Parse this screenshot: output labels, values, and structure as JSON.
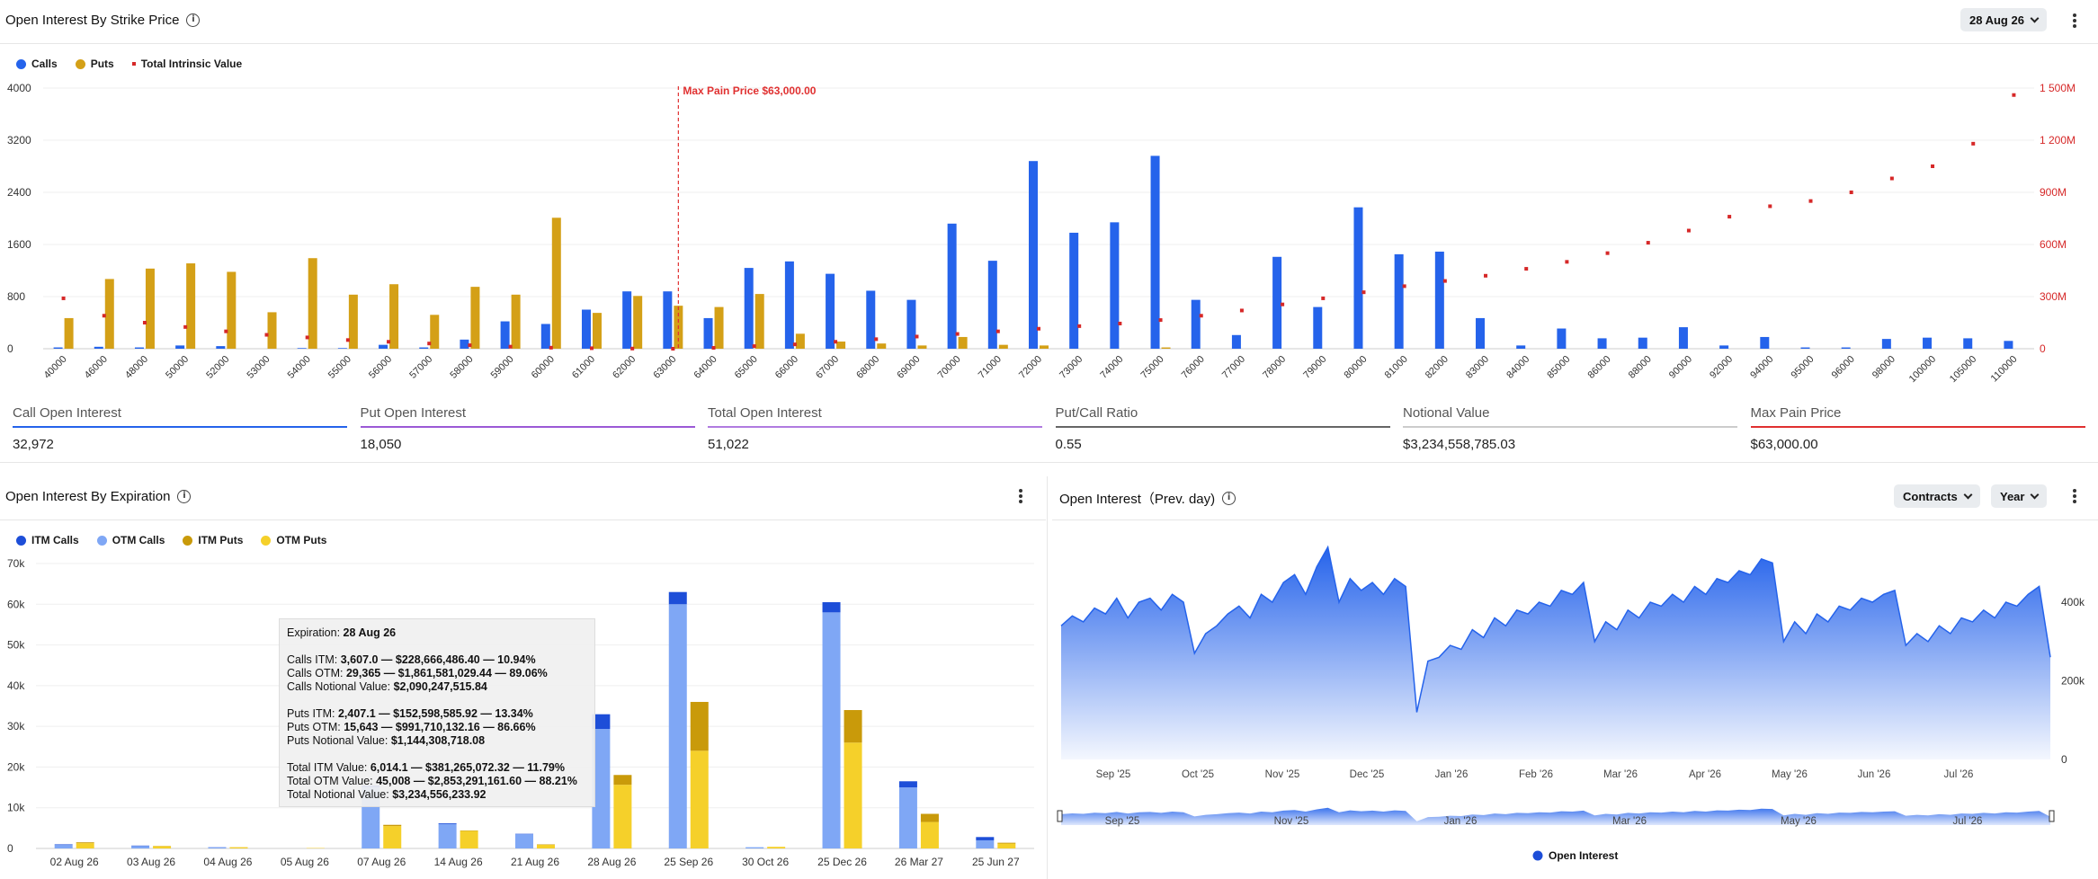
{
  "strike_panel": {
    "title": "Open Interest By Strike Price",
    "expiry_select": "28 Aug 26",
    "legend": [
      {
        "label": "Calls",
        "color": "#2563eb"
      },
      {
        "label": "Puts",
        "color": "#d4a017"
      },
      {
        "label": "Total Intrinsic Value",
        "color": "#d62828"
      }
    ],
    "max_pain_label": "Max Pain Price $63,000.00"
  },
  "stats": [
    {
      "label": "Call Open Interest",
      "value": "32,972",
      "color": "#2563eb"
    },
    {
      "label": "Put Open Interest",
      "value": "18,050",
      "color": "#9b59d6"
    },
    {
      "label": "Total Open Interest",
      "value": "51,022",
      "color": "#b07be0"
    },
    {
      "label": "Put/Call Ratio",
      "value": "0.55",
      "color": "#666666"
    },
    {
      "label": "Notional Value",
      "value": "$3,234,558,785.03",
      "color": "#cccccc"
    },
    {
      "label": "Max Pain Price",
      "value": "$63,000.00",
      "color": "#e03030"
    }
  ],
  "expiry_panel": {
    "title": "Open Interest By Expiration",
    "legend": [
      {
        "label": "ITM Calls",
        "color": "#1d4ed8"
      },
      {
        "label": "OTM Calls",
        "color": "#7fa7f5"
      },
      {
        "label": "ITM Puts",
        "color": "#c99a0a"
      },
      {
        "label": "OTM Puts",
        "color": "#f5d02a"
      }
    ],
    "tooltip": {
      "expiration_label": "Expiration:",
      "expiration_value": "28 Aug 26",
      "lines": [
        [
          "Calls ITM:",
          "3,607.0 — $228,666,486.40 — 10.94%"
        ],
        [
          "Calls OTM:",
          "29,365 — $1,861,581,029.44 — 89.06%"
        ],
        [
          "Calls Notional Value:",
          "$2,090,247,515.84"
        ],
        [
          "Puts ITM:",
          "2,407.1 — $152,598,585.92 — 13.34%"
        ],
        [
          "Puts OTM:",
          "15,643 — $991,710,132.16 — 86.66%"
        ],
        [
          "Puts Notional Value:",
          "$1,144,308,718.08"
        ],
        [
          "Total ITM Value:",
          "6,014.1 — $381,265,072.32 — 11.79%"
        ],
        [
          "Total OTM Value:",
          "45,008 — $2,853,291,161.60 — 88.21%"
        ],
        [
          "Total Notional Value:",
          "$3,234,556,233.92"
        ]
      ]
    }
  },
  "prevday_panel": {
    "title": "Open Interest（Prev. day)",
    "unit_select": "Contracts",
    "range_select": "Year",
    "legend_label": "Open Interest",
    "color": "#2563eb"
  },
  "chart_data": [
    {
      "type": "bar",
      "title": "Open Interest By Strike Price",
      "categories": [
        "40000",
        "46000",
        "48000",
        "50000",
        "52000",
        "53000",
        "54000",
        "55000",
        "56000",
        "57000",
        "58000",
        "59000",
        "60000",
        "61000",
        "62000",
        "63000",
        "64000",
        "65000",
        "66000",
        "67000",
        "68000",
        "69000",
        "70000",
        "71000",
        "72000",
        "73000",
        "74000",
        "75000",
        "76000",
        "77000",
        "78000",
        "79000",
        "80000",
        "81000",
        "82000",
        "83000",
        "84000",
        "85000",
        "86000",
        "88000",
        "90000",
        "92000",
        "94000",
        "95000",
        "96000",
        "98000",
        "100000",
        "105000",
        "110000"
      ],
      "series": [
        {
          "name": "Calls",
          "values": [
            20,
            30,
            20,
            50,
            40,
            0,
            10,
            10,
            60,
            20,
            140,
            420,
            380,
            600,
            880,
            880,
            470,
            1240,
            1340,
            1150,
            890,
            750,
            1920,
            1350,
            2880,
            1780,
            1940,
            2960,
            750,
            210,
            1410,
            640,
            2170,
            1450,
            1490,
            470,
            50,
            310,
            160,
            170,
            330,
            50,
            180,
            20,
            20,
            150,
            170,
            160,
            120
          ]
        },
        {
          "name": "Puts",
          "values": [
            470,
            1070,
            1230,
            1310,
            1180,
            560,
            1390,
            830,
            990,
            520,
            950,
            830,
            2010,
            550,
            810,
            660,
            640,
            840,
            230,
            110,
            80,
            50,
            180,
            60,
            50,
            0,
            0,
            20,
            0,
            0,
            0,
            0,
            0,
            0,
            0,
            0,
            0,
            0,
            0,
            0,
            0,
            0,
            0,
            0,
            0,
            0,
            0,
            0,
            0
          ]
        },
        {
          "name": "Total Intrinsic Value",
          "axis": "right",
          "unit": "M",
          "values": [
            290,
            190,
            150,
            125,
            100,
            80,
            65,
            50,
            40,
            30,
            20,
            12,
            6,
            3,
            1,
            0,
            5,
            15,
            25,
            40,
            55,
            70,
            85,
            100,
            115,
            130,
            145,
            165,
            190,
            220,
            255,
            290,
            325,
            360,
            390,
            420,
            460,
            500,
            550,
            610,
            680,
            760,
            820,
            850,
            900,
            980,
            1050,
            1180,
            1460
          ]
        }
      ],
      "ylim": [
        0,
        4000
      ],
      "y_ticks": [
        0,
        800,
        1600,
        2400,
        3200,
        4000
      ],
      "y2_ticks": [
        "0",
        "300M",
        "600M",
        "900M",
        "1 200M",
        "1 500M"
      ],
      "y2lim": [
        0,
        1500
      ],
      "annotation": {
        "label": "Max Pain Price $63,000.00",
        "x": "63000"
      },
      "legend": "top-left"
    },
    {
      "type": "bar",
      "title": "Open Interest By Expiration",
      "stacked": true,
      "categories": [
        "02 Aug 26",
        "03 Aug 26",
        "04 Aug 26",
        "05 Aug 26",
        "07 Aug 26",
        "14 Aug 26",
        "21 Aug 26",
        "28 Aug 26",
        "25 Sep 26",
        "30 Oct 26",
        "25 Dec 26",
        "26 Mar 27",
        "25 Jun 27"
      ],
      "series": [
        {
          "name": "ITM Calls",
          "stack": "calls",
          "values": [
            150,
            100,
            50,
            0,
            500,
            200,
            100,
            3607,
            3000,
            0,
            2500,
            1500,
            800
          ]
        },
        {
          "name": "OTM Calls",
          "stack": "calls",
          "values": [
            850,
            600,
            250,
            0,
            15000,
            6000,
            3500,
            29365,
            60000,
            300,
            58000,
            15000,
            2000
          ]
        },
        {
          "name": "ITM Puts",
          "stack": "puts",
          "values": [
            200,
            50,
            20,
            0,
            300,
            100,
            100,
            2407,
            12000,
            0,
            8000,
            2000,
            200
          ]
        },
        {
          "name": "OTM Puts",
          "stack": "puts",
          "values": [
            1300,
            550,
            300,
            100,
            5500,
            4300,
            900,
            15643,
            24000,
            400,
            26000,
            6500,
            1200
          ]
        }
      ],
      "ylim": [
        0,
        70000
      ],
      "y_ticks": [
        "0",
        "10k",
        "20k",
        "30k",
        "40k",
        "50k",
        "60k",
        "70k"
      ],
      "legend": "top-left"
    },
    {
      "type": "area",
      "title": "Open Interest（Prev. day)",
      "x_ticks": [
        "Sep '25",
        "Oct '25",
        "Nov '25",
        "Dec '25",
        "Jan '26",
        "Feb '26",
        "Mar '26",
        "Apr '26",
        "May '26",
        "Jun '26",
        "Jul '26"
      ],
      "navigator_ticks": [
        "Sep '25",
        "Nov '25",
        "Jan '26",
        "Mar '26",
        "May '26",
        "Jul '26"
      ],
      "series": [
        {
          "name": "Open Interest",
          "values": [
            340000,
            365000,
            350000,
            385000,
            370000,
            410000,
            360000,
            400000,
            410000,
            380000,
            420000,
            400000,
            270000,
            320000,
            340000,
            370000,
            390000,
            360000,
            420000,
            400000,
            450000,
            470000,
            420000,
            490000,
            540000,
            400000,
            460000,
            430000,
            450000,
            420000,
            460000,
            440000,
            120000,
            250000,
            260000,
            290000,
            280000,
            330000,
            310000,
            360000,
            340000,
            380000,
            370000,
            400000,
            390000,
            430000,
            420000,
            450000,
            300000,
            350000,
            330000,
            380000,
            360000,
            400000,
            390000,
            420000,
            400000,
            440000,
            420000,
            460000,
            450000,
            480000,
            470000,
            510000,
            500000,
            300000,
            350000,
            320000,
            370000,
            350000,
            390000,
            380000,
            410000,
            400000,
            420000,
            430000,
            290000,
            320000,
            300000,
            340000,
            320000,
            360000,
            350000,
            380000,
            360000,
            400000,
            390000,
            420000,
            440000,
            260000
          ]
        }
      ],
      "y_ticks": [
        "0",
        "200k",
        "400k"
      ],
      "ylim": [
        0,
        560000
      ],
      "legend": "bottom-center"
    }
  ]
}
